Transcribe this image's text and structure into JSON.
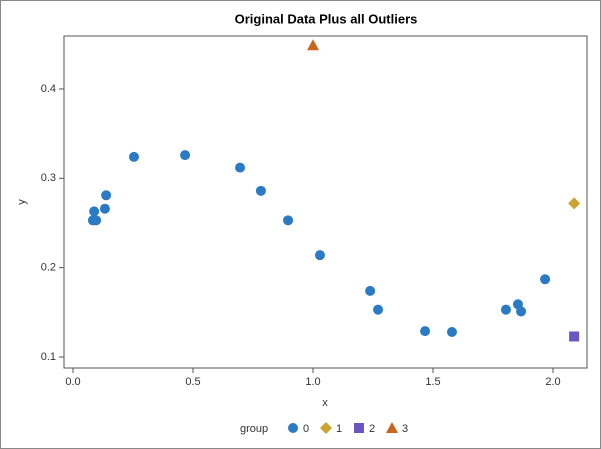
{
  "chart_data": {
    "type": "scatter",
    "title": "Original Data Plus all Outliers",
    "xlabel": "x",
    "ylabel": "y",
    "legend_title": "group",
    "xlim": [
      -0.0375,
      2.1417
    ],
    "ylim": [
      0.0877,
      0.4593
    ],
    "xticks": [
      {
        "value": 0,
        "label": "0.0"
      },
      0.5,
      {
        "value": 1,
        "label": "1.0"
      },
      1.5,
      {
        "value": 2,
        "label": "2.0"
      }
    ],
    "yticks": [
      0.1,
      0.2,
      0.3,
      0.4
    ],
    "series": [
      {
        "name": "0",
        "color": "#2a7ac4",
        "marker": "circle",
        "x": [
          0.088,
          0.083,
          0.096,
          0.133,
          0.138,
          0.254,
          0.467,
          0.696,
          0.783,
          0.896,
          1.029,
          1.238,
          1.271,
          1.467,
          1.579,
          1.804,
          1.854,
          1.867,
          1.967
        ],
        "values": [
          0.263,
          0.253,
          0.253,
          0.266,
          0.281,
          0.324,
          0.326,
          0.312,
          0.286,
          0.253,
          0.214,
          0.174,
          0.153,
          0.129,
          0.128,
          0.153,
          0.159,
          0.151,
          0.187
        ]
      },
      {
        "name": "1",
        "color": "#c9a431",
        "marker": "diamond",
        "x": [
          2.088
        ],
        "values": [
          0.272
        ]
      },
      {
        "name": "2",
        "color": "#6a55c2",
        "marker": "square",
        "x": [
          2.088
        ],
        "values": [
          0.123
        ]
      },
      {
        "name": "3",
        "color": "#c9661e",
        "marker": "triangle",
        "x": [
          1.0
        ],
        "values": [
          0.449
        ]
      }
    ]
  }
}
